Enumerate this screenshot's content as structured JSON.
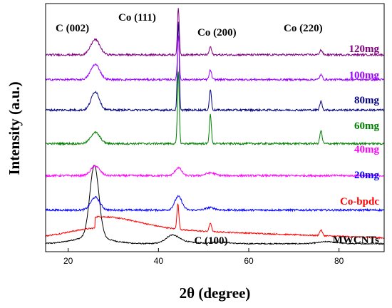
{
  "chart_data": {
    "type": "line",
    "title": "",
    "xlabel": "2θ (degree)",
    "ylabel": "Intensity (a.u.)",
    "xlim": [
      15,
      90
    ],
    "xticks": [
      "20",
      "40",
      "60",
      "80"
    ],
    "xtick_values": [
      20,
      40,
      60,
      80
    ],
    "ylim": [
      0,
      31
    ],
    "annotations": [
      {
        "text": "C (002)",
        "x": 26
      },
      {
        "text": "Co (111)",
        "x": 44.3
      },
      {
        "text": "Co (200)",
        "x": 51.5
      },
      {
        "text": "Co (220)",
        "x": 76
      },
      {
        "text": "C (100)",
        "x": 43
      }
    ],
    "series": [
      {
        "name": "MWCNTs",
        "color": "#000000",
        "offset": 1.0,
        "noise": 0.07,
        "peaks": [
          [
            25.8,
            9.0,
            1.0
          ],
          [
            25.2,
            0.8,
            4.0
          ],
          [
            43.0,
            0.8,
            1.3
          ],
          [
            44.5,
            0.35,
            2.5
          ],
          [
            53.5,
            0.2,
            2.0
          ],
          [
            77.5,
            0.25,
            2.0
          ]
        ]
      },
      {
        "name": "Co-bpdc",
        "color": "#ff0000",
        "offset": 1.6,
        "noise": 0.08,
        "hump": true,
        "peaks": [
          [
            44.3,
            3.2,
            0.22
          ],
          [
            51.5,
            1.1,
            0.25
          ],
          [
            76.0,
            0.7,
            0.3
          ]
        ]
      },
      {
        "name": "20mg",
        "color": "#0000ff",
        "offset": 5.2,
        "noise": 0.12,
        "peaks": [
          [
            26.0,
            1.6,
            1.0
          ],
          [
            44.4,
            1.7,
            0.8
          ],
          [
            51.5,
            0.3,
            1.0
          ]
        ]
      },
      {
        "name": "40mg",
        "color": "#ff00ff",
        "offset": 9.5,
        "noise": 0.12,
        "peaks": [
          [
            26.0,
            1.2,
            1.0
          ],
          [
            44.4,
            1.0,
            0.7
          ],
          [
            51.5,
            0.35,
            1.0
          ]
        ]
      },
      {
        "name": "60mg",
        "color": "#008000",
        "offset": 13.5,
        "noise": 0.12,
        "peaks": [
          [
            26.0,
            1.4,
            1.0
          ],
          [
            44.4,
            9.0,
            0.2
          ],
          [
            51.5,
            3.6,
            0.22
          ],
          [
            76.0,
            1.6,
            0.25
          ]
        ]
      },
      {
        "name": "80mg",
        "color": "#000080",
        "offset": 17.7,
        "noise": 0.12,
        "peaks": [
          [
            26.0,
            2.3,
            0.9
          ],
          [
            44.4,
            11.0,
            0.2
          ],
          [
            51.5,
            2.6,
            0.22
          ],
          [
            76.0,
            1.1,
            0.25
          ]
        ]
      },
      {
        "name": "100mg",
        "color": "#9900ff",
        "offset": 21.5,
        "noise": 0.12,
        "peaks": [
          [
            26.0,
            1.9,
            1.0
          ],
          [
            44.4,
            5.5,
            0.2
          ],
          [
            51.5,
            1.2,
            0.25
          ],
          [
            76.0,
            0.6,
            0.3
          ]
        ]
      },
      {
        "name": "120mg",
        "color": "#800080",
        "offset": 24.6,
        "noise": 0.12,
        "peaks": [
          [
            26.0,
            1.9,
            1.0
          ],
          [
            44.4,
            5.8,
            0.2
          ],
          [
            51.5,
            1.0,
            0.25
          ],
          [
            76.0,
            0.6,
            0.3
          ]
        ]
      }
    ]
  }
}
